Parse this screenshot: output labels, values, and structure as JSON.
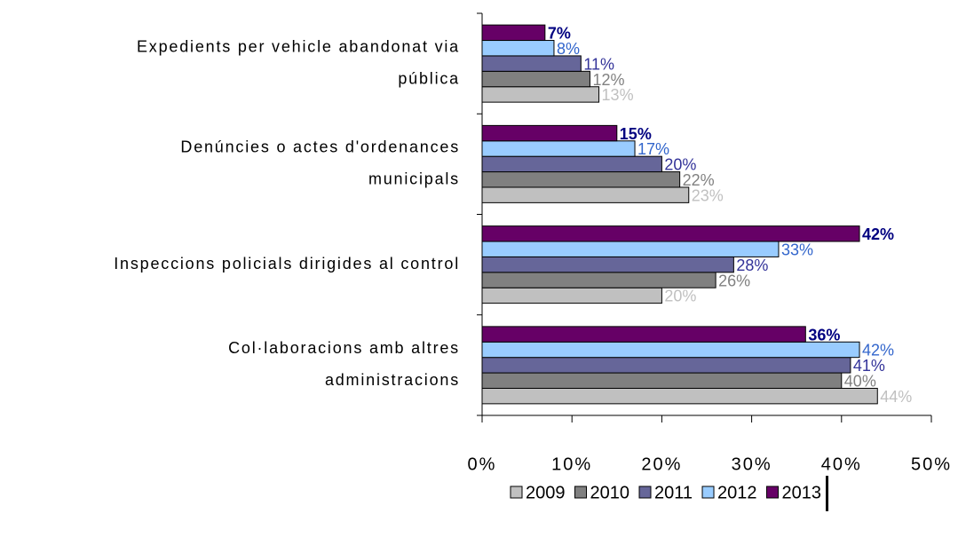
{
  "chart_data": {
    "type": "hbar",
    "categories": [
      [
        "Expedients per vehicle abandonat via",
        "pública"
      ],
      [
        "Denúncies o actes d'ordenances",
        "municipals"
      ],
      [
        "Inspeccions policials dirigides al control"
      ],
      [
        "Col·laboracions amb altres",
        "administracions"
      ]
    ],
    "series": [
      {
        "name": "2009",
        "color": "#c0c0c0",
        "label_color": "#c0c0c0",
        "values": [
          13,
          23,
          20,
          44
        ],
        "value_labels": [
          "13%",
          "23%",
          "20%",
          "44%"
        ]
      },
      {
        "name": "2010",
        "color": "#808080",
        "label_color": "#808080",
        "values": [
          12,
          22,
          26,
          40
        ],
        "value_labels": [
          "12%",
          "22%",
          "26%",
          "40%"
        ]
      },
      {
        "name": "2011",
        "color": "#666699",
        "label_color": "#333399",
        "values": [
          11,
          20,
          28,
          41
        ],
        "value_labels": [
          "11%",
          "20%",
          "28%",
          "41%"
        ]
      },
      {
        "name": "2012",
        "color": "#99ccff",
        "label_color": "#3366cc",
        "values": [
          8,
          17,
          33,
          42
        ],
        "value_labels": [
          "8%",
          "17%",
          "33%",
          "42%"
        ]
      },
      {
        "name": "2013",
        "color": "#660066",
        "label_color": "#000080",
        "bold": true,
        "values": [
          7,
          15,
          42,
          36
        ],
        "value_labels": [
          "7%",
          "15%",
          "42%",
          "36%"
        ]
      }
    ],
    "xlim": [
      0,
      50
    ],
    "xticks": [
      {
        "value": 0,
        "label": "0%"
      },
      {
        "value": 10,
        "label": "10%"
      },
      {
        "value": 20,
        "label": "20%"
      },
      {
        "value": 30,
        "label": "30%"
      },
      {
        "value": 40,
        "label": "40%"
      },
      {
        "value": 50,
        "label": "50%"
      }
    ],
    "legend": "bottom"
  }
}
